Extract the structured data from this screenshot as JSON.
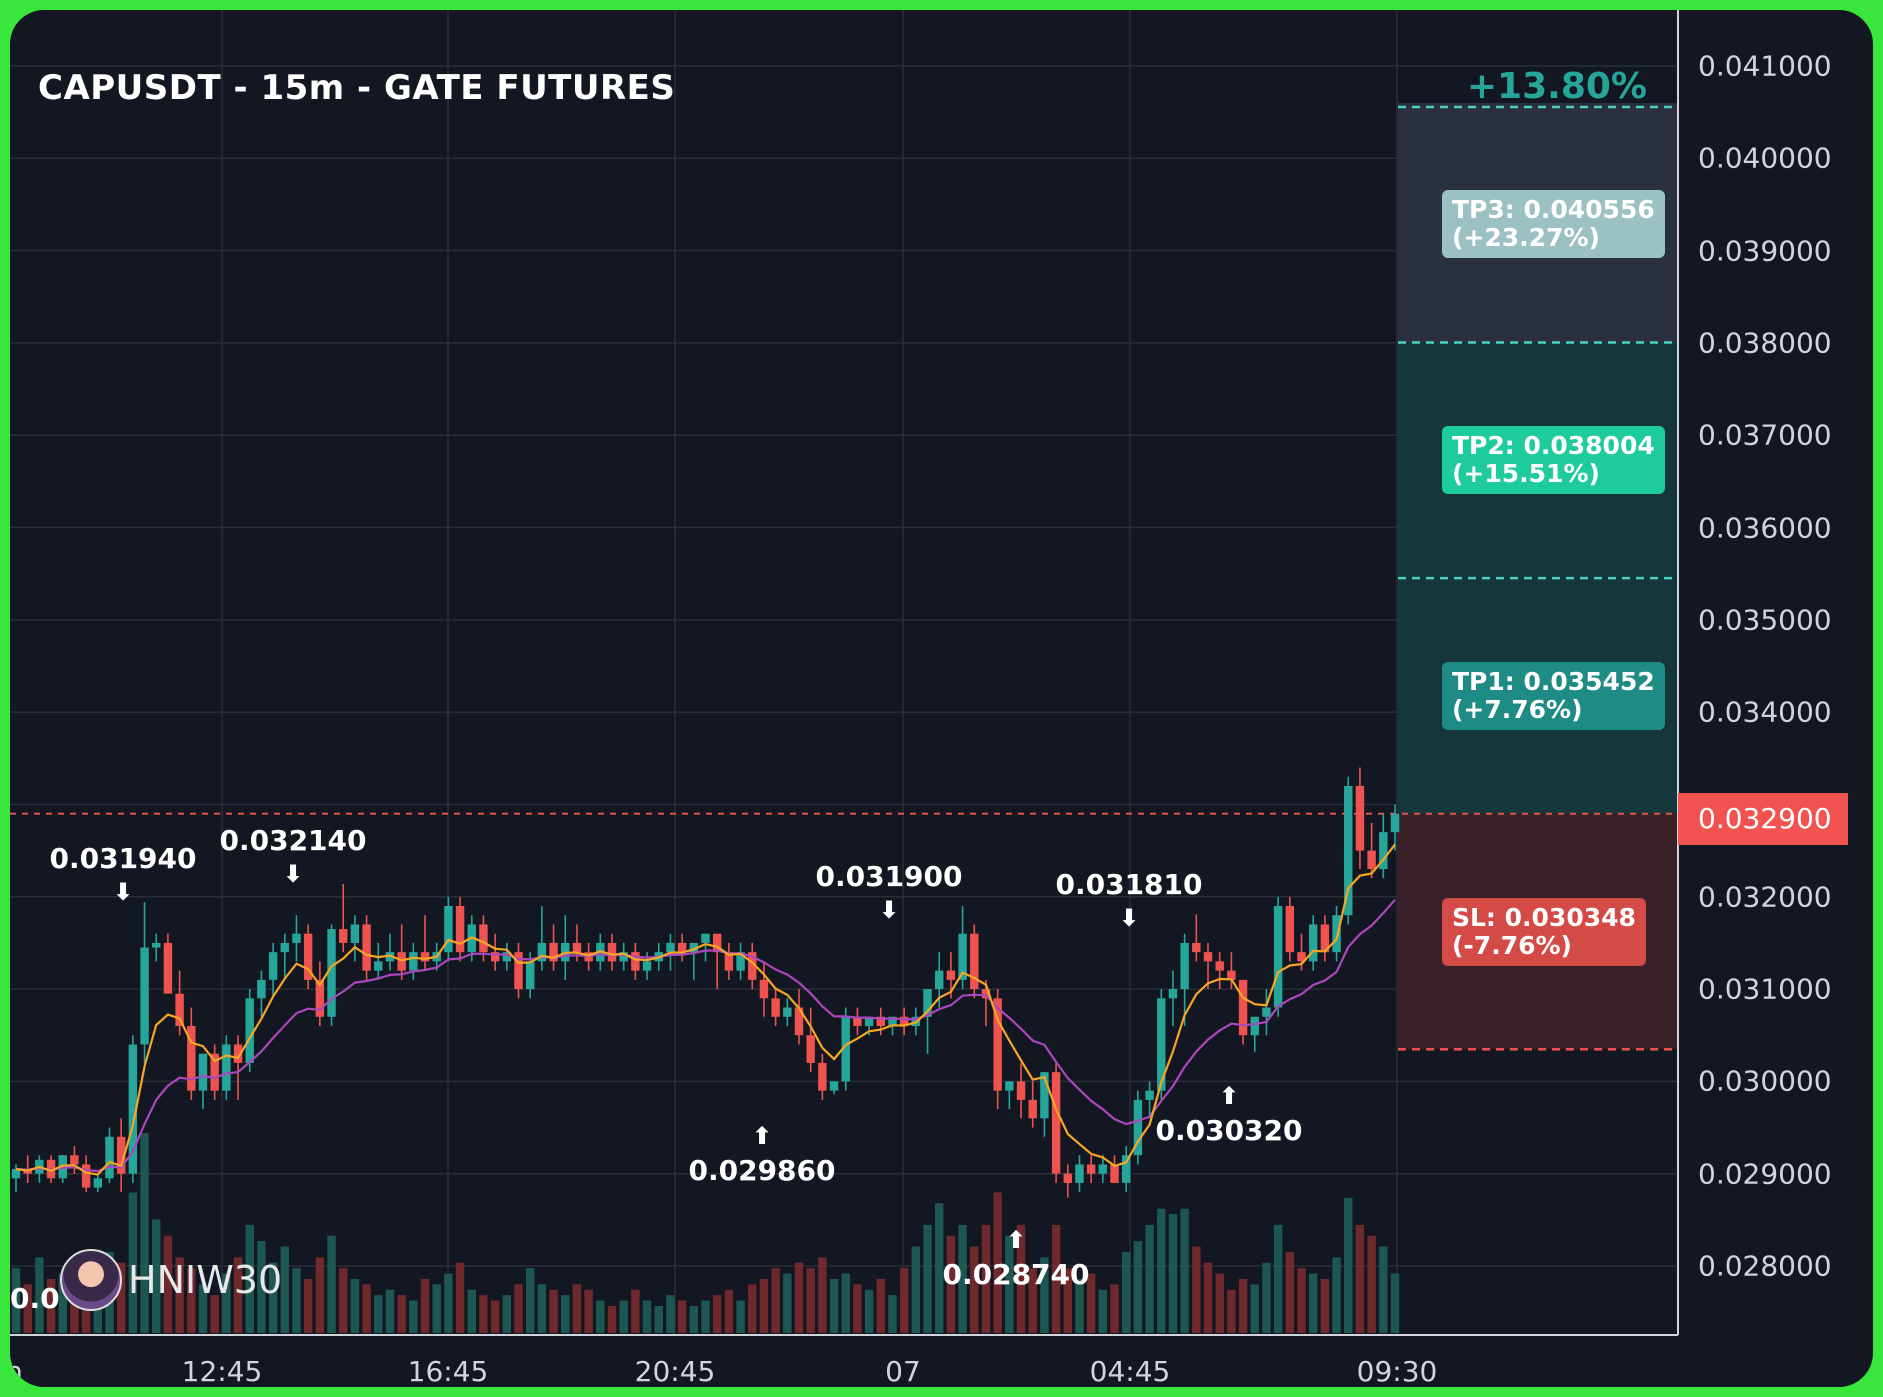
{
  "title": "CAPUSDT - 15m - GATE FUTURES",
  "change_label": "+13.80%",
  "watermark": "HNIW30",
  "left_cut_label": "0.0",
  "current_price": "0.032900",
  "targets": {
    "tp3": {
      "line1": "TP3: 0.040556",
      "line2": "(+23.27%)",
      "value": 0.040556
    },
    "tp2": {
      "line1": "TP2: 0.038004",
      "line2": "(+15.51%)",
      "value": 0.038004
    },
    "tp1": {
      "line1": "TP1: 0.035452",
      "line2": "(+7.76%)",
      "value": 0.035452
    },
    "sl": {
      "line1": "SL: 0.030348",
      "line2": "(-7.76%)",
      "value": 0.030348
    }
  },
  "colors": {
    "background": "#131722",
    "frame": "#39e63b",
    "up": "#26a69a",
    "down": "#ef5350",
    "ema_fast": "#f5a623",
    "ema_slow": "#ab47bc",
    "tp_line": "#4dd0c4",
    "sl_line": "#ef5350"
  },
  "chart_data": {
    "type": "candlestick",
    "symbol": "CAPUSDT",
    "interval": "15m",
    "exchange": "GATE FUTURES",
    "ylim": [
      0.0272,
      0.0412
    ],
    "y_ticks": [
      "0.041000",
      "0.040000",
      "0.039000",
      "0.038000",
      "0.037000",
      "0.036000",
      "0.035000",
      "0.034000",
      "0.033000",
      "0.032000",
      "0.031000",
      "0.030000",
      "0.029000",
      "0.028000"
    ],
    "x_ticks": [
      "n",
      "12:45",
      "16:45",
      "20:45",
      "07",
      "04:45",
      "09:30"
    ],
    "annotations": [
      {
        "label": "0.031940",
        "kind": "high"
      },
      {
        "label": "0.032140",
        "kind": "high"
      },
      {
        "label": "0.029860",
        "kind": "low"
      },
      {
        "label": "0.031900",
        "kind": "high"
      },
      {
        "label": "0.028740",
        "kind": "low"
      },
      {
        "label": "0.031810",
        "kind": "high"
      },
      {
        "label": "0.030320",
        "kind": "low"
      }
    ],
    "trade_levels": {
      "entry": 0.0329,
      "tp1": 0.035452,
      "tp2": 0.038004,
      "tp3": 0.040556,
      "sl": 0.030348
    },
    "candles": [
      [
        0.02895,
        0.0291,
        0.0288,
        0.02905,
        120
      ],
      [
        0.02905,
        0.0292,
        0.0289,
        0.029,
        90
      ],
      [
        0.029,
        0.0292,
        0.0289,
        0.02915,
        140
      ],
      [
        0.02915,
        0.0292,
        0.0289,
        0.02895,
        100
      ],
      [
        0.02895,
        0.0292,
        0.0289,
        0.0292,
        110
      ],
      [
        0.0292,
        0.0293,
        0.029,
        0.0291,
        95
      ],
      [
        0.0291,
        0.0292,
        0.0288,
        0.02885,
        80
      ],
      [
        0.02885,
        0.029,
        0.0288,
        0.02895,
        70
      ],
      [
        0.02895,
        0.0295,
        0.0289,
        0.0294,
        150
      ],
      [
        0.0294,
        0.0296,
        0.0288,
        0.029,
        130
      ],
      [
        0.029,
        0.0305,
        0.0289,
        0.0304,
        260
      ],
      [
        0.0304,
        0.03194,
        0.0302,
        0.03145,
        370
      ],
      [
        0.03145,
        0.0316,
        0.0313,
        0.0315,
        210
      ],
      [
        0.0315,
        0.0316,
        0.031,
        0.03095,
        180
      ],
      [
        0.03095,
        0.0312,
        0.0305,
        0.0306,
        140
      ],
      [
        0.0306,
        0.0308,
        0.0298,
        0.0299,
        120
      ],
      [
        0.0299,
        0.0303,
        0.0297,
        0.0303,
        90
      ],
      [
        0.0303,
        0.0304,
        0.0298,
        0.0299,
        70
      ],
      [
        0.0299,
        0.0305,
        0.0298,
        0.0304,
        110
      ],
      [
        0.0304,
        0.0305,
        0.0298,
        0.0302,
        140
      ],
      [
        0.0302,
        0.031,
        0.0301,
        0.0309,
        200
      ],
      [
        0.0309,
        0.0312,
        0.0307,
        0.0311,
        170
      ],
      [
        0.0311,
        0.0315,
        0.0309,
        0.0314,
        130
      ],
      [
        0.0314,
        0.0316,
        0.0311,
        0.0315,
        160
      ],
      [
        0.0315,
        0.0318,
        0.0313,
        0.0316,
        120
      ],
      [
        0.0316,
        0.0317,
        0.031,
        0.0311,
        100
      ],
      [
        0.0311,
        0.0313,
        0.0306,
        0.0307,
        140
      ],
      [
        0.0307,
        0.0317,
        0.0306,
        0.03165,
        180
      ],
      [
        0.03165,
        0.03214,
        0.0314,
        0.0315,
        120
      ],
      [
        0.0315,
        0.0318,
        0.0313,
        0.0317,
        100
      ],
      [
        0.0317,
        0.0318,
        0.0311,
        0.0312,
        90
      ],
      [
        0.0312,
        0.0315,
        0.0311,
        0.0313,
        70
      ],
      [
        0.0313,
        0.0316,
        0.0312,
        0.0314,
        80
      ],
      [
        0.0314,
        0.0317,
        0.0311,
        0.0312,
        70
      ],
      [
        0.0312,
        0.0315,
        0.0311,
        0.0314,
        60
      ],
      [
        0.0314,
        0.0318,
        0.0312,
        0.0313,
        100
      ],
      [
        0.0313,
        0.0315,
        0.0312,
        0.0314,
        90
      ],
      [
        0.0314,
        0.032,
        0.0313,
        0.0319,
        110
      ],
      [
        0.0319,
        0.032,
        0.0313,
        0.0314,
        130
      ],
      [
        0.0314,
        0.0318,
        0.0313,
        0.0317,
        80
      ],
      [
        0.0317,
        0.0318,
        0.0313,
        0.0314,
        70
      ],
      [
        0.0314,
        0.0316,
        0.0312,
        0.0313,
        60
      ],
      [
        0.0313,
        0.0315,
        0.0312,
        0.0314,
        70
      ],
      [
        0.0314,
        0.0315,
        0.0309,
        0.031,
        90
      ],
      [
        0.031,
        0.0314,
        0.0309,
        0.0313,
        120
      ],
      [
        0.0313,
        0.0319,
        0.0312,
        0.0315,
        90
      ],
      [
        0.0315,
        0.0317,
        0.0312,
        0.0313,
        80
      ],
      [
        0.0313,
        0.0318,
        0.0311,
        0.0315,
        70
      ],
      [
        0.0315,
        0.0317,
        0.0313,
        0.0314,
        90
      ],
      [
        0.0314,
        0.0315,
        0.0312,
        0.0313,
        80
      ],
      [
        0.0313,
        0.0316,
        0.0312,
        0.0315,
        60
      ],
      [
        0.0315,
        0.0316,
        0.0312,
        0.0313,
        50
      ],
      [
        0.0313,
        0.0315,
        0.0312,
        0.0314,
        60
      ],
      [
        0.0314,
        0.0315,
        0.0311,
        0.0312,
        80
      ],
      [
        0.0312,
        0.0314,
        0.0311,
        0.0313,
        60
      ],
      [
        0.0313,
        0.0315,
        0.0312,
        0.0314,
        50
      ],
      [
        0.0314,
        0.0316,
        0.0312,
        0.0315,
        70
      ],
      [
        0.0315,
        0.0316,
        0.0313,
        0.0314,
        60
      ],
      [
        0.0314,
        0.0315,
        0.0311,
        0.0315,
        50
      ],
      [
        0.0315,
        0.0316,
        0.0313,
        0.0316,
        60
      ],
      [
        0.0316,
        0.0316,
        0.031,
        0.0314,
        70
      ],
      [
        0.0314,
        0.0315,
        0.0311,
        0.0312,
        80
      ],
      [
        0.0312,
        0.0315,
        0.0311,
        0.0314,
        60
      ],
      [
        0.0314,
        0.0315,
        0.031,
        0.0311,
        90
      ],
      [
        0.0311,
        0.0313,
        0.0307,
        0.0309,
        100
      ],
      [
        0.0309,
        0.031,
        0.0306,
        0.0307,
        120
      ],
      [
        0.0307,
        0.0309,
        0.0306,
        0.0308,
        110
      ],
      [
        0.0308,
        0.031,
        0.0304,
        0.0305,
        130
      ],
      [
        0.0305,
        0.0308,
        0.0301,
        0.0302,
        120
      ],
      [
        0.0302,
        0.0303,
        0.0298,
        0.0299,
        140
      ],
      [
        0.0299,
        0.03,
        0.02986,
        0.03,
        100
      ],
      [
        0.03,
        0.0308,
        0.0299,
        0.0307,
        110
      ],
      [
        0.0307,
        0.0308,
        0.0305,
        0.0306,
        90
      ],
      [
        0.0306,
        0.0307,
        0.0305,
        0.0307,
        80
      ],
      [
        0.0307,
        0.0308,
        0.0305,
        0.0306,
        100
      ],
      [
        0.0306,
        0.0307,
        0.0305,
        0.0307,
        70
      ],
      [
        0.0307,
        0.0308,
        0.0305,
        0.0306,
        120
      ],
      [
        0.0306,
        0.0308,
        0.0305,
        0.0307,
        160
      ],
      [
        0.0307,
        0.031,
        0.0303,
        0.031,
        200
      ],
      [
        0.031,
        0.0314,
        0.0308,
        0.0312,
        240
      ],
      [
        0.0312,
        0.0314,
        0.0309,
        0.0311,
        180
      ],
      [
        0.0311,
        0.0319,
        0.031,
        0.0316,
        200
      ],
      [
        0.0316,
        0.0317,
        0.0309,
        0.031,
        160
      ],
      [
        0.031,
        0.0311,
        0.0306,
        0.0309,
        200
      ],
      [
        0.0309,
        0.031,
        0.0297,
        0.0299,
        260
      ],
      [
        0.0299,
        0.03,
        0.0297,
        0.03,
        180
      ],
      [
        0.03,
        0.0302,
        0.0296,
        0.0298,
        200
      ],
      [
        0.0298,
        0.03,
        0.0295,
        0.0296,
        120
      ],
      [
        0.0296,
        0.0301,
        0.0294,
        0.0301,
        140
      ],
      [
        0.0301,
        0.0302,
        0.0289,
        0.029,
        200
      ],
      [
        0.029,
        0.0291,
        0.02874,
        0.0289,
        120
      ],
      [
        0.0289,
        0.0292,
        0.0288,
        0.0291,
        100
      ],
      [
        0.0291,
        0.0292,
        0.0289,
        0.029,
        110
      ],
      [
        0.029,
        0.0292,
        0.0289,
        0.0291,
        80
      ],
      [
        0.0291,
        0.0292,
        0.0289,
        0.0289,
        90
      ],
      [
        0.0289,
        0.0293,
        0.0288,
        0.0292,
        150
      ],
      [
        0.0292,
        0.0299,
        0.0291,
        0.0298,
        170
      ],
      [
        0.0298,
        0.03,
        0.0296,
        0.0299,
        200
      ],
      [
        0.0299,
        0.031,
        0.0298,
        0.0309,
        230
      ],
      [
        0.0309,
        0.0312,
        0.0306,
        0.031,
        220
      ],
      [
        0.031,
        0.0316,
        0.0306,
        0.0315,
        230
      ],
      [
        0.0315,
        0.03181,
        0.0313,
        0.0314,
        160
      ],
      [
        0.0314,
        0.0315,
        0.031,
        0.0313,
        130
      ],
      [
        0.0313,
        0.0314,
        0.031,
        0.0312,
        110
      ],
      [
        0.0312,
        0.0314,
        0.031,
        0.0311,
        80
      ],
      [
        0.0311,
        0.0311,
        0.0304,
        0.0305,
        100
      ],
      [
        0.0305,
        0.0306,
        0.03032,
        0.0307,
        90
      ],
      [
        0.0307,
        0.031,
        0.0305,
        0.0308,
        130
      ],
      [
        0.0308,
        0.032,
        0.0307,
        0.0319,
        200
      ],
      [
        0.0319,
        0.032,
        0.0313,
        0.0314,
        150
      ],
      [
        0.0314,
        0.0316,
        0.0312,
        0.0313,
        120
      ],
      [
        0.0313,
        0.0318,
        0.0312,
        0.0317,
        110
      ],
      [
        0.0317,
        0.0318,
        0.0313,
        0.0314,
        100
      ],
      [
        0.0314,
        0.0319,
        0.0313,
        0.0318,
        140
      ],
      [
        0.0318,
        0.0333,
        0.0317,
        0.0332,
        250
      ],
      [
        0.0332,
        0.0334,
        0.0323,
        0.0325,
        200
      ],
      [
        0.0325,
        0.0328,
        0.0322,
        0.0323,
        180
      ],
      [
        0.0323,
        0.0329,
        0.0322,
        0.0327,
        160
      ],
      [
        0.0327,
        0.033,
        0.0325,
        0.0329,
        110
      ]
    ]
  }
}
